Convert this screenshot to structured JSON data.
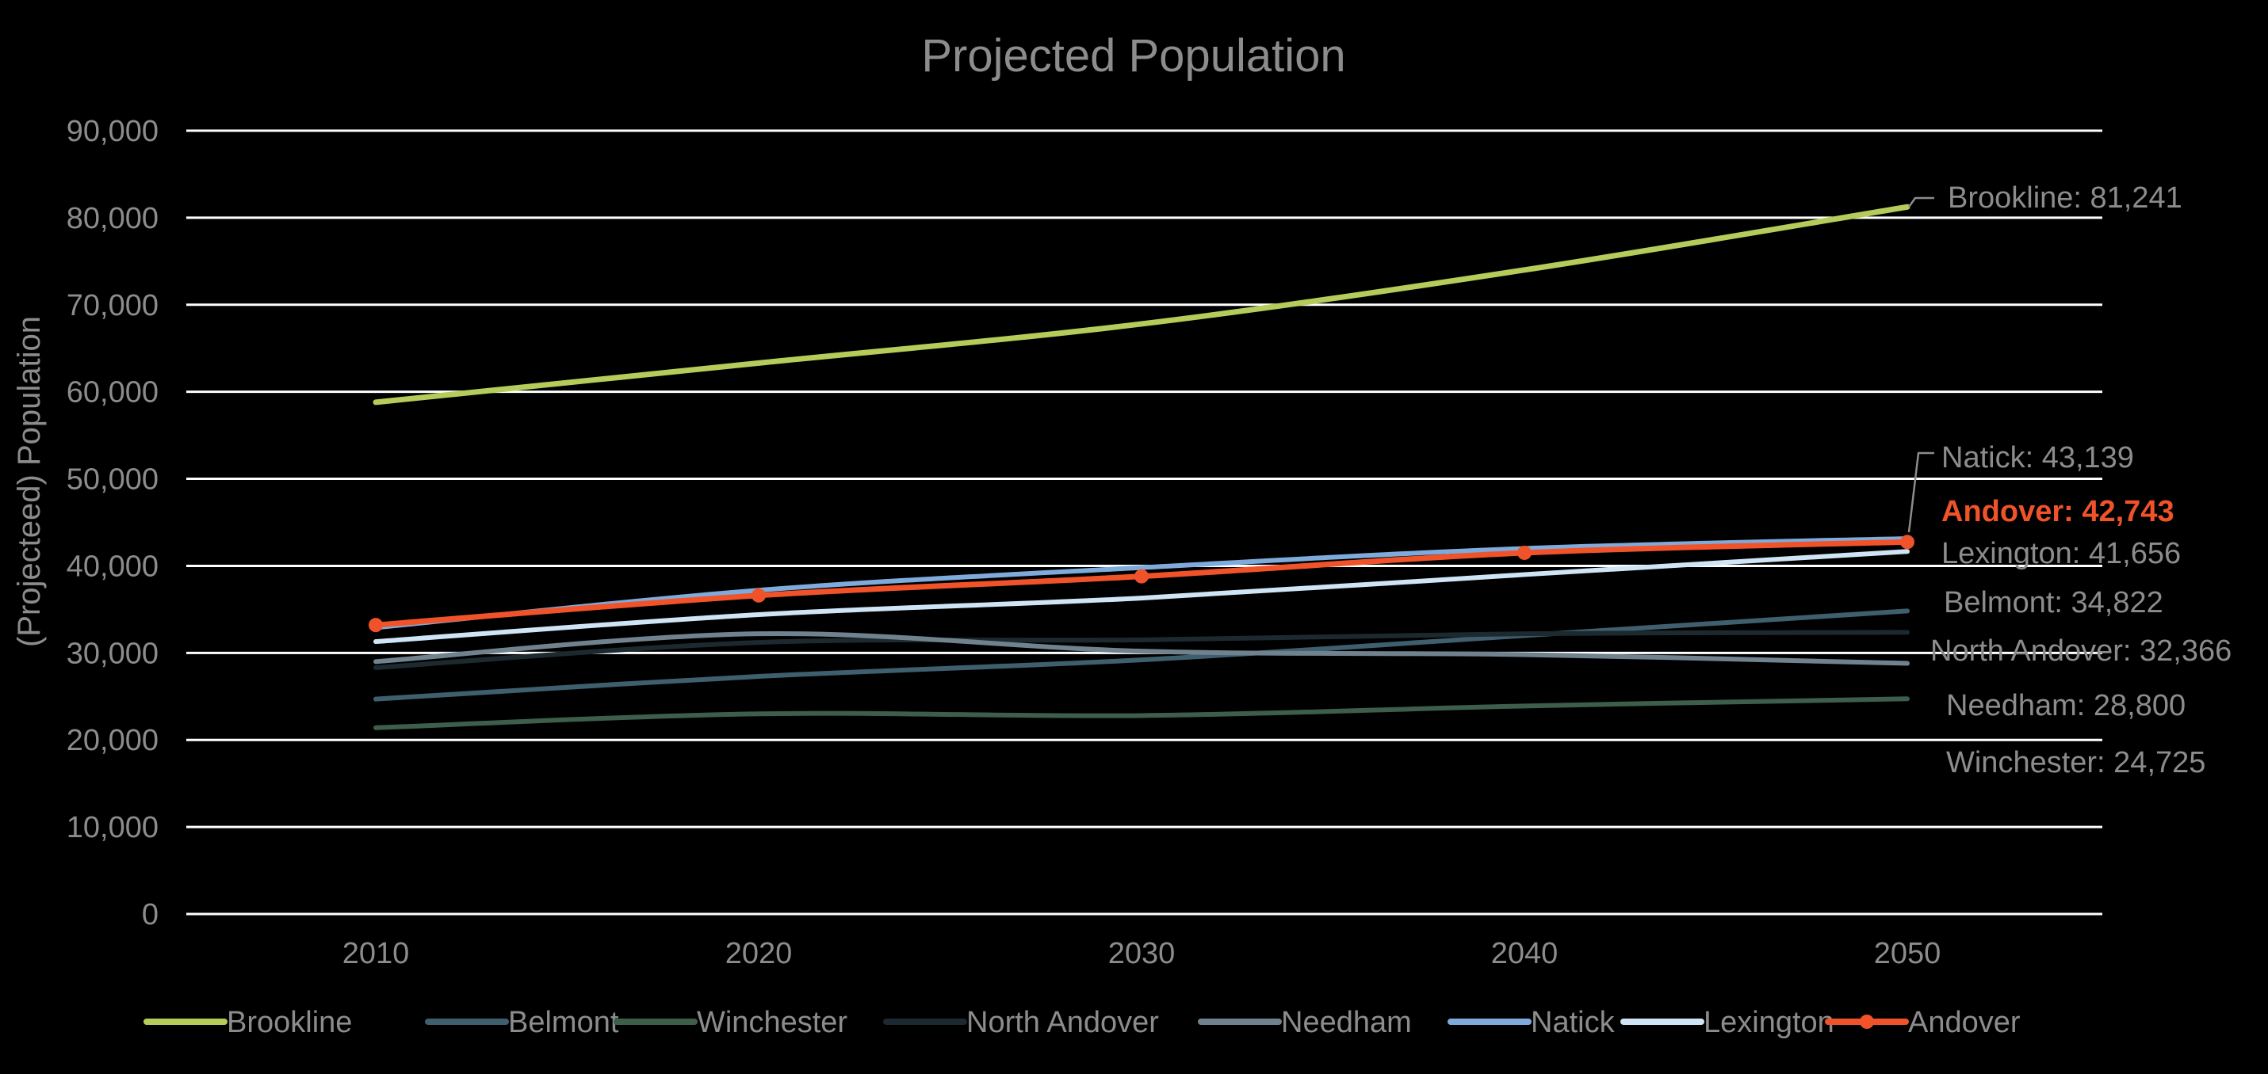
{
  "chart_data": {
    "type": "line",
    "title": "Projected Population",
    "xlabel": "",
    "ylabel": "(Projecteed) Population",
    "x": [
      "2010",
      "2020",
      "2030",
      "2040",
      "2050"
    ],
    "ylim": [
      0,
      90000
    ],
    "yticks": [
      0,
      10000,
      20000,
      30000,
      40000,
      50000,
      60000,
      70000,
      80000,
      90000
    ],
    "ytick_labels": [
      "0",
      "10,000",
      "20,000",
      "30,000",
      "40,000",
      "50,000",
      "60,000",
      "70,000",
      "80,000",
      "90,000"
    ],
    "grid": true,
    "legend": "bottom",
    "series": [
      {
        "name": "Brookline",
        "color": "#b5cc5a",
        "values": [
          58800,
          63300,
          67800,
          74000,
          81241
        ],
        "label": "Brookline: 81,241",
        "markers": false,
        "width": 7
      },
      {
        "name": "Belmont",
        "color": "#3f5f6e",
        "values": [
          24700,
          27300,
          29200,
          32000,
          34822
        ],
        "label": "Belmont: 34,822",
        "markers": false,
        "width": 6
      },
      {
        "name": "Winchester",
        "color": "#3d5e4a",
        "values": [
          21400,
          23000,
          22800,
          23900,
          24725
        ],
        "label": "Winchester: 24,725",
        "markers": false,
        "width": 6
      },
      {
        "name": "North Andover",
        "color": "#1c2a30",
        "values": [
          28300,
          31200,
          31500,
          32200,
          32366
        ],
        "label": "North Andover: 32,366",
        "markers": false,
        "width": 6
      },
      {
        "name": "Needham",
        "color": "#71828f",
        "values": [
          29000,
          32200,
          30200,
          29800,
          28800
        ],
        "label": "Needham: 28,800",
        "markers": false,
        "width": 6
      },
      {
        "name": "Natick",
        "color": "#7faadc",
        "values": [
          32900,
          37200,
          39800,
          42000,
          43139
        ],
        "label": "Natick: 43,139",
        "markers": false,
        "width": 6
      },
      {
        "name": "Lexington",
        "color": "#cfe4f5",
        "values": [
          31300,
          34400,
          36300,
          39000,
          41656
        ],
        "label": "Lexington: 41,656",
        "markers": false,
        "width": 6
      },
      {
        "name": "Andover",
        "color": "#f0532a",
        "values": [
          33200,
          36600,
          38800,
          41500,
          42743
        ],
        "label": "Andover: 42,743",
        "markers": true,
        "width": 7
      }
    ]
  }
}
